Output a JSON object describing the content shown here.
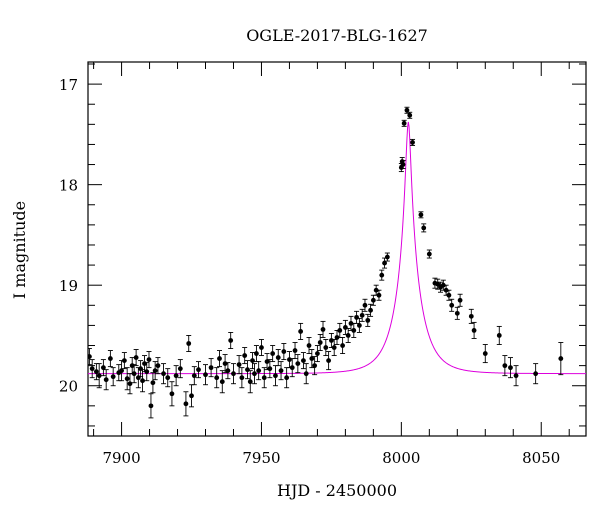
{
  "chart_data": {
    "type": "scatter",
    "title": "OGLE-2017-BLG-1627",
    "xlabel": "HJD - 2450000",
    "ylabel": "I magnitude",
    "xlim": [
      7888,
      8066
    ],
    "ylim": [
      20.5,
      16.78
    ],
    "y_inverted": true,
    "grid": false,
    "x_ticks": [
      7900,
      7950,
      8000,
      8050
    ],
    "y_ticks": [
      17,
      18,
      19,
      20
    ],
    "colors": {
      "points": "#000000",
      "model": "#dd00dd"
    },
    "model": {
      "t0": 8002.5,
      "tE": 8.2,
      "u0": 0.1,
      "base_mag": 19.88,
      "blend_fraction": 1.0
    },
    "series": [
      {
        "points": [
          [
            7888.5,
            19.71,
            0.08
          ],
          [
            7889.5,
            19.83,
            0.09
          ],
          [
            7891,
            19.86,
            0.08
          ],
          [
            7892,
            19.9,
            0.12
          ],
          [
            7893.5,
            19.82,
            0.08
          ],
          [
            7894.5,
            19.94,
            0.1
          ],
          [
            7896,
            19.73,
            0.08
          ],
          [
            7897,
            19.91,
            0.09
          ],
          [
            7899,
            19.87,
            0.08
          ],
          [
            7900,
            19.85,
            0.1
          ],
          [
            7901,
            19.75,
            0.08
          ],
          [
            7902,
            19.93,
            0.11
          ],
          [
            7903,
            19.98,
            0.1
          ],
          [
            7903.8,
            19.8,
            0.08
          ],
          [
            7904.5,
            19.88,
            0.09
          ],
          [
            7905.2,
            19.72,
            0.08
          ],
          [
            7906,
            19.92,
            0.1
          ],
          [
            7906.8,
            19.83,
            0.08
          ],
          [
            7907.5,
            19.95,
            0.11
          ],
          [
            7908.2,
            19.78,
            0.08
          ],
          [
            7909,
            19.86,
            0.09
          ],
          [
            7909.8,
            19.74,
            0.08
          ],
          [
            7910.5,
            20.2,
            0.12
          ],
          [
            7911.2,
            19.97,
            0.1
          ],
          [
            7912,
            19.85,
            0.09
          ],
          [
            7913,
            19.8,
            0.08
          ],
          [
            7915,
            19.88,
            0.1
          ],
          [
            7916.5,
            19.92,
            0.09
          ],
          [
            7918,
            20.08,
            0.12
          ],
          [
            7919.5,
            19.9,
            0.1
          ],
          [
            7921,
            19.83,
            0.09
          ],
          [
            7923,
            20.18,
            0.12
          ],
          [
            7924,
            19.58,
            0.08
          ],
          [
            7925,
            20.1,
            0.11
          ],
          [
            7926,
            19.9,
            0.09
          ],
          [
            7927.5,
            19.84,
            0.08
          ],
          [
            7930,
            19.89,
            0.1
          ],
          [
            7932,
            19.82,
            0.09
          ],
          [
            7934,
            19.92,
            0.1
          ],
          [
            7935,
            19.73,
            0.08
          ],
          [
            7936,
            19.96,
            0.11
          ],
          [
            7937,
            19.78,
            0.09
          ],
          [
            7938,
            19.85,
            0.08
          ],
          [
            7939,
            19.55,
            0.08
          ],
          [
            7940,
            19.88,
            0.1
          ],
          [
            7942,
            19.79,
            0.09
          ],
          [
            7943,
            19.92,
            0.1
          ],
          [
            7944,
            19.7,
            0.08
          ],
          [
            7945,
            19.84,
            0.09
          ],
          [
            7946,
            19.96,
            0.11
          ],
          [
            7946.8,
            19.75,
            0.08
          ],
          [
            7947.5,
            19.88,
            0.1
          ],
          [
            7948.2,
            19.68,
            0.08
          ],
          [
            7949,
            19.85,
            0.09
          ],
          [
            7950,
            19.62,
            0.08
          ],
          [
            7951,
            19.92,
            0.1
          ],
          [
            7952,
            19.76,
            0.08
          ],
          [
            7953,
            19.83,
            0.09
          ],
          [
            7954,
            19.68,
            0.08
          ],
          [
            7955,
            19.9,
            0.1
          ],
          [
            7956,
            19.72,
            0.08
          ],
          [
            7957,
            19.85,
            0.09
          ],
          [
            7958,
            19.66,
            0.08
          ],
          [
            7959,
            19.92,
            0.1
          ],
          [
            7960,
            19.74,
            0.08
          ],
          [
            7961,
            19.82,
            0.09
          ],
          [
            7962,
            19.65,
            0.08
          ],
          [
            7963,
            19.78,
            0.09
          ],
          [
            7964,
            19.46,
            0.08
          ],
          [
            7965,
            19.75,
            0.08
          ],
          [
            7966,
            19.88,
            0.1
          ],
          [
            7967,
            19.6,
            0.08
          ],
          [
            7968,
            19.73,
            0.09
          ],
          [
            7969,
            19.8,
            0.09
          ],
          [
            7970,
            19.68,
            0.08
          ],
          [
            7971,
            19.57,
            0.08
          ],
          [
            7972,
            19.44,
            0.08
          ],
          [
            7973,
            19.62,
            0.08
          ],
          [
            7974,
            19.75,
            0.09
          ],
          [
            7975,
            19.55,
            0.07
          ],
          [
            7976,
            19.62,
            0.08
          ],
          [
            7977,
            19.52,
            0.07
          ],
          [
            7978,
            19.45,
            0.07
          ],
          [
            7979,
            19.6,
            0.08
          ],
          [
            7980,
            19.42,
            0.07
          ],
          [
            7981,
            19.5,
            0.07
          ],
          [
            7982,
            19.38,
            0.07
          ],
          [
            7983,
            19.45,
            0.07
          ],
          [
            7984,
            19.32,
            0.06
          ],
          [
            7985,
            19.4,
            0.07
          ],
          [
            7986,
            19.3,
            0.06
          ],
          [
            7987,
            19.2,
            0.06
          ],
          [
            7988,
            19.35,
            0.06
          ],
          [
            7989,
            19.25,
            0.06
          ],
          [
            7990,
            19.15,
            0.05
          ],
          [
            7991,
            19.05,
            0.05
          ],
          [
            7992,
            19.1,
            0.05
          ],
          [
            7993,
            18.9,
            0.05
          ],
          [
            7994,
            18.78,
            0.05
          ],
          [
            7995,
            18.72,
            0.04
          ],
          [
            8000,
            17.83,
            0.04
          ],
          [
            8000.3,
            17.77,
            0.04
          ],
          [
            8000.6,
            17.8,
            0.04
          ],
          [
            8001,
            17.39,
            0.03
          ],
          [
            8002,
            17.26,
            0.03
          ],
          [
            8003,
            17.31,
            0.03
          ],
          [
            8004,
            17.58,
            0.03
          ],
          [
            8007,
            18.3,
            0.03
          ],
          [
            8008,
            18.43,
            0.04
          ],
          [
            8010,
            18.69,
            0.04
          ],
          [
            8012,
            18.98,
            0.05
          ],
          [
            8013,
            18.99,
            0.05
          ],
          [
            8014,
            19.02,
            0.05
          ],
          [
            8015,
            19.0,
            0.05
          ],
          [
            8016,
            19.05,
            0.05
          ],
          [
            8017,
            19.1,
            0.05
          ],
          [
            8018,
            19.2,
            0.06
          ],
          [
            8020,
            19.28,
            0.06
          ],
          [
            8021,
            19.15,
            0.06
          ],
          [
            8025,
            19.31,
            0.07
          ],
          [
            8026,
            19.45,
            0.08
          ],
          [
            8030,
            19.68,
            0.09
          ],
          [
            8035,
            19.5,
            0.09
          ],
          [
            8037,
            19.8,
            0.1
          ],
          [
            8039,
            19.82,
            0.1
          ],
          [
            8041,
            19.9,
            0.1
          ],
          [
            8048,
            19.88,
            0.1
          ],
          [
            8057,
            19.73,
            0.16
          ]
        ]
      }
    ]
  }
}
